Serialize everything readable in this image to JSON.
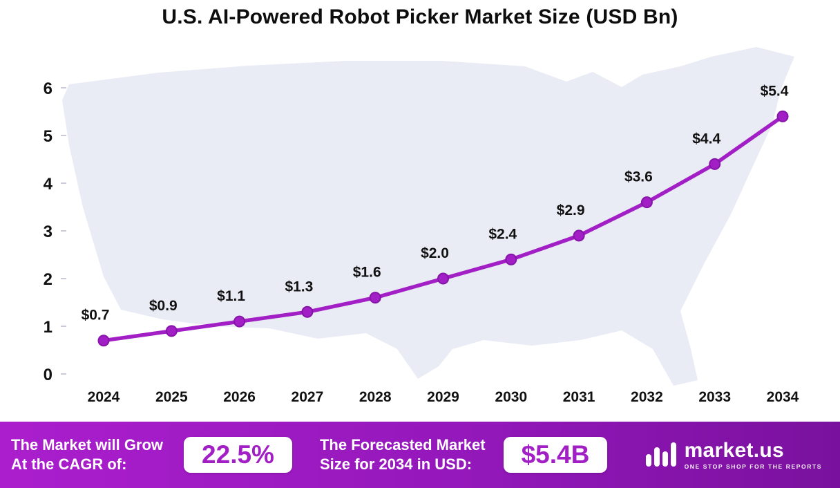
{
  "chart_data": {
    "type": "line",
    "title": "U.S. AI-Powered Robot Picker Market Size (USD Bn)",
    "categories": [
      "2024",
      "2025",
      "2026",
      "2027",
      "2028",
      "2029",
      "2030",
      "2031",
      "2032",
      "2033",
      "2034"
    ],
    "values": [
      0.7,
      0.9,
      1.1,
      1.3,
      1.6,
      2.0,
      2.4,
      2.9,
      3.6,
      4.4,
      5.4
    ],
    "point_labels": [
      "$0.7",
      "$0.9",
      "$1.1",
      "$1.3",
      "$1.6",
      "$2.0",
      "$2.4",
      "$2.9",
      "$3.6",
      "$4.4",
      "$5.4"
    ],
    "xlabel": "",
    "ylabel": "",
    "ylim": [
      0,
      6
    ],
    "yticks": [
      0,
      1,
      2,
      3,
      4,
      5,
      6
    ],
    "grid": false,
    "legend_position": "none",
    "line_color": "#A21FC6",
    "point_color": "#A21FC6",
    "point_stroke": "#8514A8"
  },
  "footer": {
    "cagr_text_line1": "The Market will Grow",
    "cagr_text_line2": "At the CAGR of:",
    "cagr_value": "22.5%",
    "forecast_text_line1": "The Forecasted Market",
    "forecast_text_line2": "Size for 2034 in USD:",
    "forecast_value": "$5.4B",
    "brand": "market.us",
    "brand_tagline": "ONE STOP SHOP FOR THE REPORTS"
  },
  "colors": {
    "accent": "#A21FC6",
    "banner_gradient_start": "#AB1ECD",
    "banner_gradient_end": "#7A119E",
    "map_fill": "#E9EBF5"
  },
  "icons": {
    "logo": "market-us-logo-icon"
  }
}
